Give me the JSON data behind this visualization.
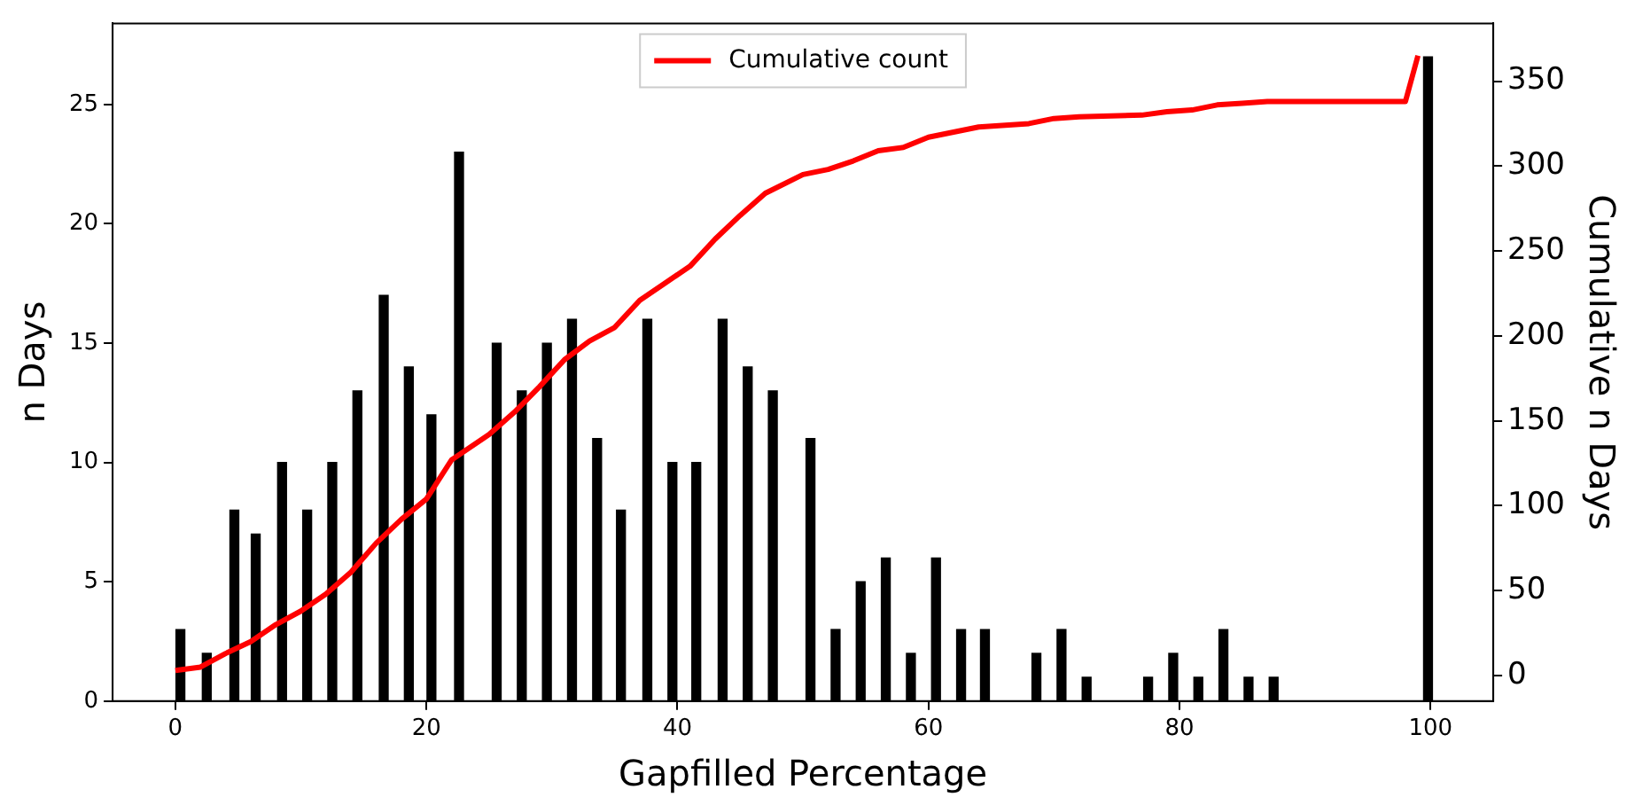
{
  "chart_data": {
    "type": "bar",
    "xlabel": "Gapfilled Percentage",
    "ylabel": "n Days",
    "y2label": "Cumulative n Days",
    "legend": "top",
    "xlim": [
      -5,
      105
    ],
    "xticks": [
      0,
      20,
      40,
      60,
      80,
      100
    ],
    "ylim": [
      0,
      28.4
    ],
    "yticks": [
      0,
      5,
      10,
      15,
      20,
      25
    ],
    "y2lim": [
      -15,
      384
    ],
    "y2ticks": [
      0,
      50,
      100,
      150,
      200,
      250,
      300,
      350
    ],
    "series": [
      {
        "color": "#000000",
        "x": [
          0.4,
          2.5,
          4.7,
          6.4,
          8.5,
          10.5,
          12.5,
          14.5,
          16.6,
          18.6,
          20.4,
          22.6,
          25.6,
          27.6,
          29.6,
          31.6,
          33.6,
          35.5,
          37.6,
          39.6,
          41.5,
          43.6,
          45.6,
          47.6,
          50.6,
          52.6,
          54.6,
          56.6,
          58.6,
          60.6,
          62.6,
          64.5,
          68.6,
          70.6,
          72.6,
          77.5,
          79.5,
          81.5,
          83.5,
          85.5,
          87.5,
          99.8
        ],
        "values": [
          3,
          2,
          8,
          7,
          10,
          8,
          10,
          13,
          17,
          14,
          12,
          23,
          15,
          13,
          15,
          16,
          11,
          8,
          16,
          10,
          10,
          16,
          14,
          13,
          11,
          3,
          5,
          6,
          2,
          6,
          3,
          3,
          2,
          3,
          1,
          1,
          2,
          1,
          3,
          1,
          1,
          27
        ]
      },
      {
        "type": "line",
        "name": "Cumulative count",
        "color": "#ff0000",
        "axis": "y2",
        "x": [
          0,
          2,
          4,
          6,
          8,
          10,
          12,
          14,
          16,
          18,
          20,
          22,
          25,
          27,
          29,
          31,
          33,
          35,
          37,
          39,
          41,
          43,
          45,
          47,
          50,
          52,
          54,
          56,
          58,
          60,
          62,
          64,
          68,
          70,
          72,
          77,
          79,
          81,
          83,
          85,
          87,
          98,
          99
        ],
        "values": [
          3,
          5,
          13,
          20,
          30,
          38,
          48,
          61,
          78,
          92,
          104,
          127,
          142,
          155,
          170,
          186,
          197,
          205,
          221,
          231,
          241,
          257,
          271,
          284,
          295,
          298,
          303,
          309,
          311,
          317,
          320,
          323,
          325,
          328,
          329,
          330,
          332,
          333,
          336,
          337,
          338,
          338,
          365
        ]
      }
    ]
  }
}
